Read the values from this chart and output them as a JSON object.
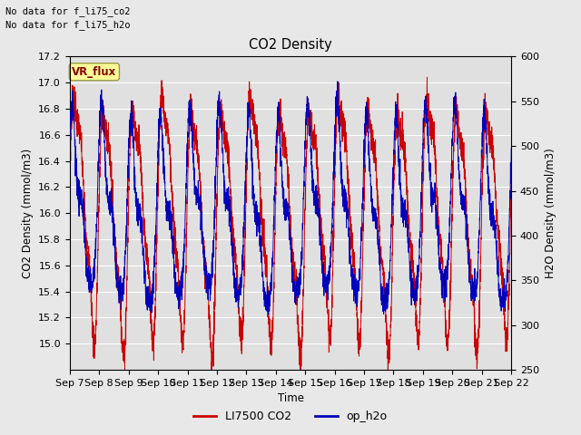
{
  "title": "CO2 Density",
  "xlabel": "Time",
  "ylabel_left": "CO2 Density (mmol/m3)",
  "ylabel_right": "H2O Density (mmol/m3)",
  "ylim_left": [
    14.8,
    17.2
  ],
  "ylim_right": [
    250,
    600
  ],
  "yticks_left": [
    15.0,
    15.2,
    15.4,
    15.6,
    15.8,
    16.0,
    16.2,
    16.4,
    16.6,
    16.8,
    17.0,
    17.2
  ],
  "yticks_right": [
    250,
    300,
    350,
    400,
    450,
    500,
    550,
    600
  ],
  "xtick_labels": [
    "Sep 7",
    "Sep 8",
    "Sep 9",
    "Sep 10",
    "Sep 11",
    "Sep 12",
    "Sep 13",
    "Sep 14",
    "Sep 15",
    "Sep 16",
    "Sep 17",
    "Sep 18",
    "Sep 19",
    "Sep 20",
    "Sep 21",
    "Sep 22"
  ],
  "legend_labels": [
    "LI7500 CO2",
    "op_h2o"
  ],
  "legend_colors": [
    "#cc0000",
    "#0000bb"
  ],
  "line_color_co2": "#cc0000",
  "line_color_h2o": "#0000bb",
  "text_no_data_1": "No data for f_li75_co2",
  "text_no_data_2": "No data for f_li75_h2o",
  "vr_flux_label": "VR_flux",
  "background_color": "#e8e8e8",
  "plot_bg_color": "#e0e0e0",
  "grid_color": "#ffffff",
  "n_points": 3600,
  "seed": 7
}
